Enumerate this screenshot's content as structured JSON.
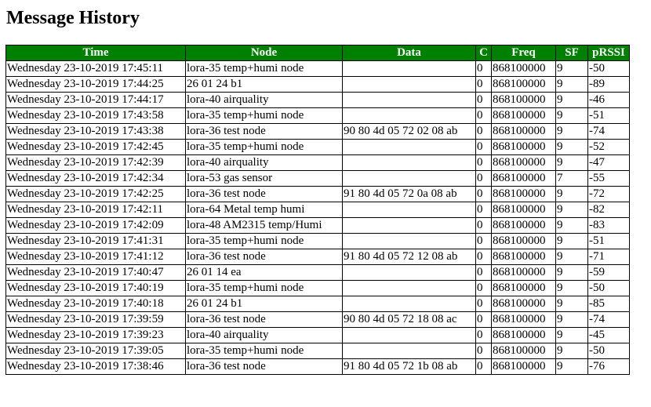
{
  "page": {
    "title": "Message History"
  },
  "table": {
    "header_bg": "#008000",
    "columns": [
      "Time",
      "Node",
      "Data",
      "C",
      "Freq",
      "SF",
      "pRSSI"
    ],
    "rows": [
      [
        "Wednesday 23-10-2019 17:45:11",
        "lora-35 temp+humi node",
        "",
        "0",
        "868100000",
        "9",
        "-50"
      ],
      [
        "Wednesday 23-10-2019 17:44:25",
        "26 01 24 b1",
        "",
        "0",
        "868100000",
        "9",
        "-89"
      ],
      [
        "Wednesday 23-10-2019 17:44:17",
        "lora-40 airquality",
        "",
        "0",
        "868100000",
        "9",
        "-46"
      ],
      [
        "Wednesday 23-10-2019 17:43:58",
        "lora-35 temp+humi node",
        "",
        "0",
        "868100000",
        "9",
        "-51"
      ],
      [
        "Wednesday 23-10-2019 17:43:38",
        "lora-36 test node",
        "90 80 4d 05 72 02 08 ab",
        "0",
        "868100000",
        "9",
        "-74"
      ],
      [
        "Wednesday 23-10-2019 17:42:45",
        "lora-35 temp+humi node",
        "",
        "0",
        "868100000",
        "9",
        "-52"
      ],
      [
        "Wednesday 23-10-2019 17:42:39",
        "lora-40 airquality",
        "",
        "0",
        "868100000",
        "9",
        "-47"
      ],
      [
        "Wednesday 23-10-2019 17:42:34",
        "lora-53 gas sensor",
        "",
        "0",
        "868100000",
        "7",
        "-55"
      ],
      [
        "Wednesday 23-10-2019 17:42:25",
        "lora-36 test node",
        "91 80 4d 05 72 0a 08 ab",
        "0",
        "868100000",
        "9",
        "-72"
      ],
      [
        "Wednesday 23-10-2019 17:42:11",
        "lora-64 Metal temp humi",
        "",
        "0",
        "868100000",
        "9",
        "-82"
      ],
      [
        "Wednesday 23-10-2019 17:42:09",
        "lora-48 AM2315 temp/Humi",
        "",
        "0",
        "868100000",
        "9",
        "-83"
      ],
      [
        "Wednesday 23-10-2019 17:41:31",
        "lora-35 temp+humi node",
        "",
        "0",
        "868100000",
        "9",
        "-51"
      ],
      [
        "Wednesday 23-10-2019 17:41:12",
        "lora-36 test node",
        "91 80 4d 05 72 12 08 ab",
        "0",
        "868100000",
        "9",
        "-71"
      ],
      [
        "Wednesday 23-10-2019 17:40:47",
        "26 01 14 ea",
        "",
        "0",
        "868100000",
        "9",
        "-59"
      ],
      [
        "Wednesday 23-10-2019 17:40:19",
        "lora-35 temp+humi node",
        "",
        "0",
        "868100000",
        "9",
        "-50"
      ],
      [
        "Wednesday 23-10-2019 17:40:18",
        "26 01 24 b1",
        "",
        "0",
        "868100000",
        "9",
        "-85"
      ],
      [
        "Wednesday 23-10-2019 17:39:59",
        "lora-36 test node",
        "90 80 4d 05 72 18 08 ac",
        "0",
        "868100000",
        "9",
        "-74"
      ],
      [
        "Wednesday 23-10-2019 17:39:23",
        "lora-40 airquality",
        "",
        "0",
        "868100000",
        "9",
        "-45"
      ],
      [
        "Wednesday 23-10-2019 17:39:05",
        "lora-35 temp+humi node",
        "",
        "0",
        "868100000",
        "9",
        "-50"
      ],
      [
        "Wednesday 23-10-2019 17:38:46",
        "lora-36 test node",
        "91 80 4d 05 72 1b 08 ab",
        "0",
        "868100000",
        "9",
        "-76"
      ]
    ]
  }
}
